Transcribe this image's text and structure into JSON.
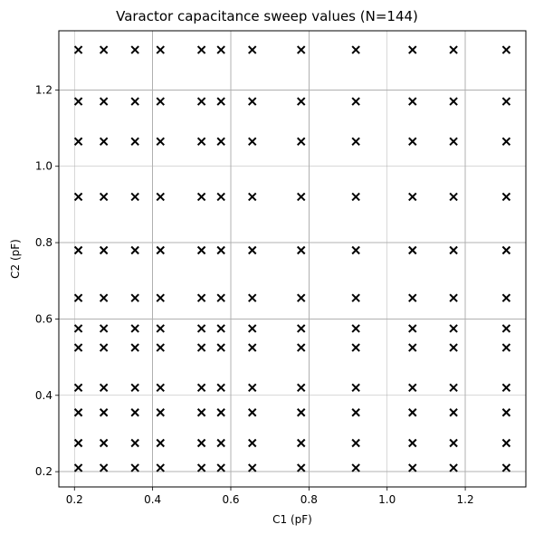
{
  "chart_data": {
    "type": "scatter",
    "title": "Varactor capacitance sweep values (N=144)",
    "xlabel": "C1 (pF)",
    "ylabel": "C2 (pF)",
    "xlim": [
      0.16,
      1.355
    ],
    "ylim": [
      0.16,
      1.355
    ],
    "xticks": [
      0.2,
      0.4,
      0.6,
      0.8,
      1.0,
      1.2
    ],
    "yticks": [
      0.2,
      0.4,
      0.6,
      0.8,
      1.0,
      1.2
    ],
    "xtick_labels": [
      "0.2",
      "0.4",
      "0.6",
      "0.8",
      "1.0",
      "1.2"
    ],
    "ytick_labels": [
      "0.2",
      "0.4",
      "0.6",
      "0.8",
      "1.0",
      "1.2"
    ],
    "grid": true,
    "marker": "x",
    "marker_color": "#000000",
    "c1_values": [
      0.21,
      0.275,
      0.355,
      0.42,
      0.525,
      0.575,
      0.655,
      0.78,
      0.92,
      1.065,
      1.17,
      1.305
    ],
    "c2_values": [
      0.21,
      0.275,
      0.355,
      0.42,
      0.525,
      0.575,
      0.655,
      0.78,
      0.92,
      1.065,
      1.17,
      1.305
    ],
    "grid_description": "full Cartesian product of c1_values x c2_values"
  }
}
